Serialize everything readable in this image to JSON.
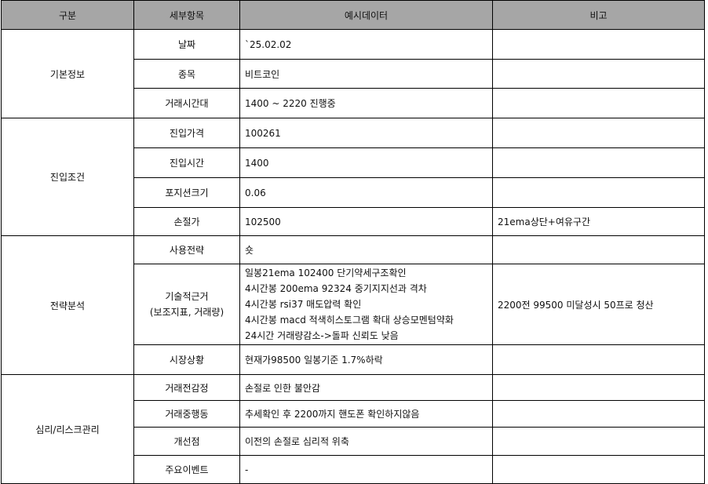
{
  "headers": [
    "구분",
    "세부항목",
    "예시데이터",
    "비고"
  ],
  "sections": [
    {
      "category": "기본정보",
      "rows": [
        {
          "item": "날짜",
          "value": "`25.02.02",
          "note": ""
        },
        {
          "item": "종목",
          "value": "비트코인",
          "note": ""
        },
        {
          "item": "거래시간대",
          "value": "1400 ~ 2220 진행중",
          "note": ""
        }
      ]
    },
    {
      "category": "진입조건",
      "rows": [
        {
          "item": "진입가격",
          "value": "100261",
          "note": ""
        },
        {
          "item": "진입시간",
          "value": "1400",
          "note": ""
        },
        {
          "item": "포지션크기",
          "value": "0.06",
          "note": ""
        },
        {
          "item": "손절가",
          "value": "102500",
          "note": "21ema상단+여유구간"
        }
      ]
    },
    {
      "category": "전략분석",
      "rows": [
        {
          "item": "사용전략",
          "value": "숏",
          "note": ""
        },
        {
          "item": "기술적근거",
          "item_sub": "(보조지표, 거래량)",
          "value_lines": [
            "일봉21ema 102400 단기약세구조확인",
            "4시간봉 200ema 92324 중기지지선과 격차",
            "4시간봉 rsi37 매도압력 확인",
            "4시간봉 macd 적색히스토그램 확대 상승모멘텀약화",
            "24시간 거래량감소->돌파 신뢰도 낮음"
          ],
          "note": "2200전 99500 미달성시 50프로 청산"
        },
        {
          "item": "시장상황",
          "value": "현재가98500 일봉기준 1.7%하락",
          "note": ""
        }
      ]
    },
    {
      "category": "심리/리스크관리",
      "rows": [
        {
          "item": "거래전감정",
          "value": "손절로 인한 불안감",
          "note": ""
        },
        {
          "item": "거래중행동",
          "value": "추세확인 후 2200까지 핸도폰 확인하지않음",
          "note": ""
        },
        {
          "item": "개선점",
          "value": "이전의 손절로 심리적 위축",
          "note": ""
        },
        {
          "item": "주요이벤트",
          "value": "-",
          "note": ""
        }
      ]
    }
  ],
  "colors": {
    "header_bg": "#a6a6a6",
    "border": "#000000"
  }
}
